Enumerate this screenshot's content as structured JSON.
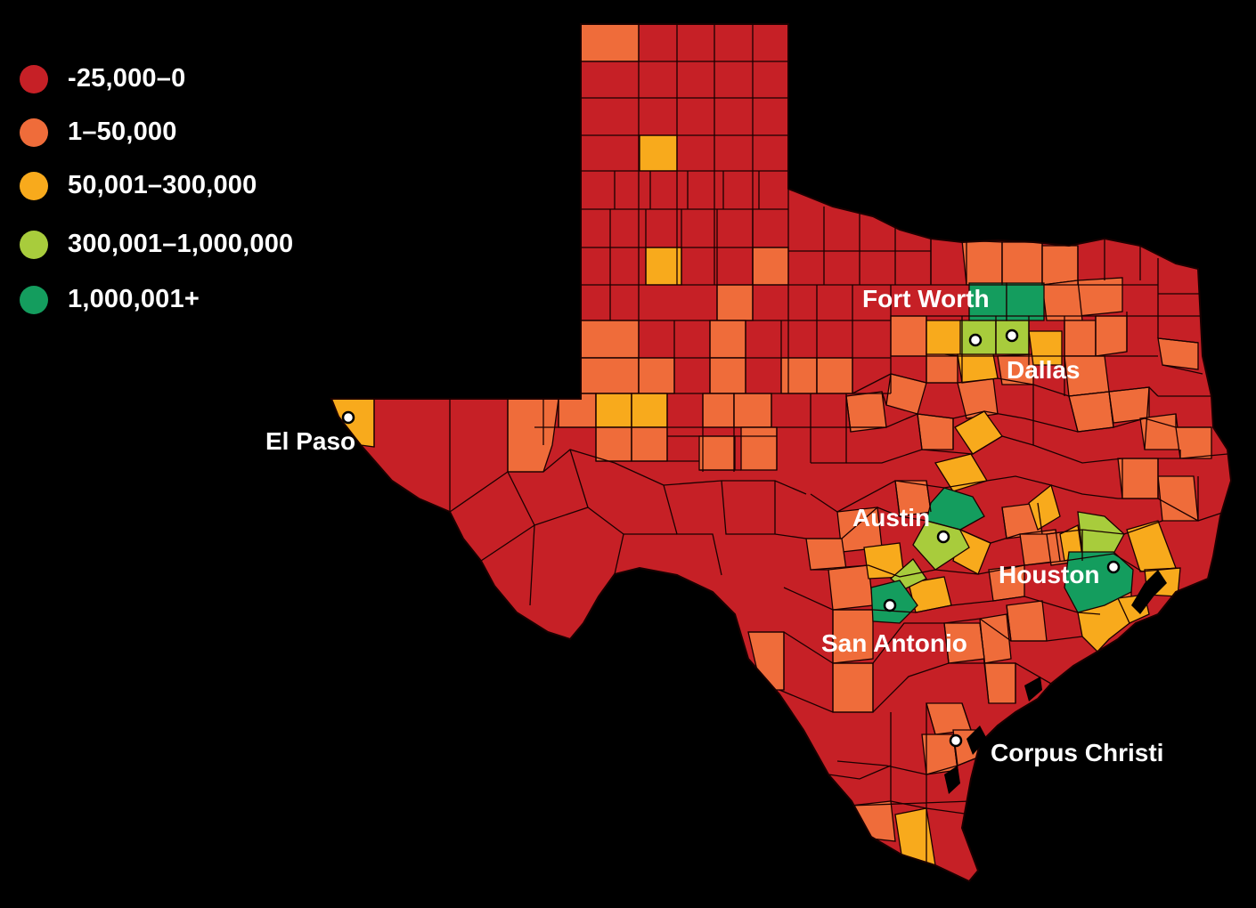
{
  "legend": {
    "items": [
      {
        "label": "-25,000–0",
        "color": "#C62026"
      },
      {
        "label": "1–50,000",
        "color": "#EF6C3A"
      },
      {
        "label": "50,001–300,000",
        "color": "#F8AA1C"
      },
      {
        "label": "300,001–1,000,000",
        "color": "#A8CC3C"
      },
      {
        "label": "1,000,001+",
        "color": "#149D5E"
      }
    ]
  },
  "cities": [
    {
      "name": "Fort Worth"
    },
    {
      "name": "Dallas"
    },
    {
      "name": "El Paso"
    },
    {
      "name": "Austin"
    },
    {
      "name": "Houston"
    },
    {
      "name": "San Antonio"
    },
    {
      "name": "Corpus Christi"
    }
  ],
  "colors": {
    "background": "#000000",
    "county_border": "#1a0000",
    "city_marker_fill": "#ffffff"
  }
}
